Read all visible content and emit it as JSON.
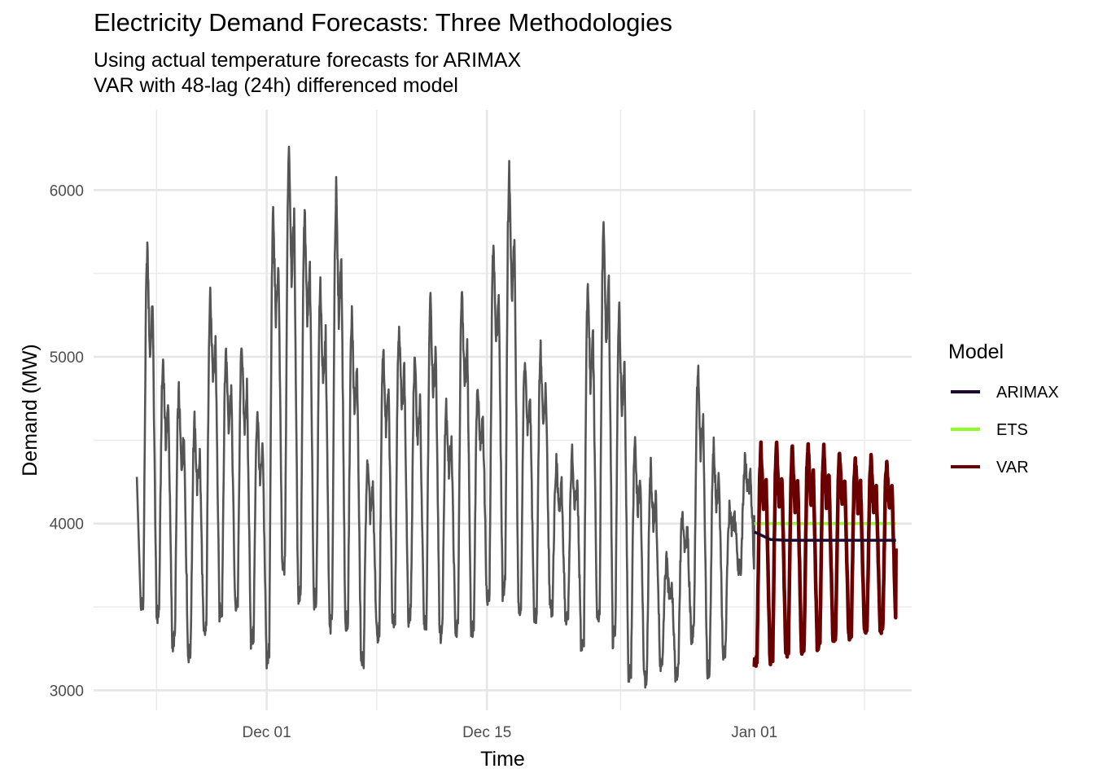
{
  "chart_data": {
    "type": "line",
    "title": "Electricity Demand Forecasts: Three Methodologies",
    "subtitle_lines": [
      "Using actual temperature forecasts for ARIMAX",
      "VAR with 48-lag (24h) differenced model"
    ],
    "xlabel": "Time",
    "ylabel": "Demand (MW)",
    "xlim": [
      "2024-11-20",
      "2025-01-11"
    ],
    "ylim": [
      2880,
      6480
    ],
    "x_ticks": [
      {
        "date": "2024-12-01",
        "label": "Dec 01"
      },
      {
        "date": "2024-12-15",
        "label": "Dec 15"
      },
      {
        "date": "2025-01-01",
        "label": "Jan 01"
      }
    ],
    "y_ticks": [
      3000,
      4000,
      5000,
      6000
    ],
    "grid": true,
    "legend": {
      "title": "Model",
      "position": "right",
      "entries": [
        {
          "name": "ARIMAX",
          "color": "#1f0a2e"
        },
        {
          "name": "ETS",
          "color": "#8fff2a"
        },
        {
          "name": "VAR",
          "color": "#6b0000"
        }
      ]
    },
    "observed": {
      "color": "#555555",
      "daily_peaks": [
        [
          "2024-11-23",
          5670
        ],
        [
          "2024-11-24",
          4990
        ],
        [
          "2024-11-25",
          4800
        ],
        [
          "2024-11-26",
          4620
        ],
        [
          "2024-11-27",
          5410
        ],
        [
          "2024-11-28",
          5060
        ],
        [
          "2024-11-29",
          5090
        ],
        [
          "2024-11-30",
          4690
        ],
        [
          "2024-12-01",
          5890
        ],
        [
          "2024-12-02",
          6300
        ],
        [
          "2024-12-03",
          5900
        ],
        [
          "2024-12-04",
          5450
        ],
        [
          "2024-12-05",
          6020
        ],
        [
          "2024-12-06",
          5270
        ],
        [
          "2024-12-07",
          4370
        ],
        [
          "2024-12-08",
          5060
        ],
        [
          "2024-12-09",
          5220
        ],
        [
          "2024-12-10",
          5000
        ],
        [
          "2024-12-11",
          5370
        ],
        [
          "2024-12-12",
          4730
        ],
        [
          "2024-12-13",
          5410
        ],
        [
          "2024-12-14",
          4860
        ],
        [
          "2024-12-15",
          5720
        ],
        [
          "2024-12-16",
          6130
        ],
        [
          "2024-12-17",
          5010
        ],
        [
          "2024-12-18",
          5060
        ],
        [
          "2024-12-19",
          4370
        ],
        [
          "2024-12-20",
          4420
        ],
        [
          "2024-12-21",
          5460
        ],
        [
          "2024-12-22",
          5840
        ],
        [
          "2024-12-23",
          5290
        ],
        [
          "2024-12-24",
          4500
        ],
        [
          "2024-12-25",
          4340
        ],
        [
          "2024-12-26",
          3780
        ],
        [
          "2024-12-27",
          4070
        ],
        [
          "2024-12-28",
          4950
        ],
        [
          "2024-12-29",
          4490
        ],
        [
          "2024-12-30",
          4080
        ],
        [
          "2024-12-31",
          4390
        ]
      ],
      "daily_troughs": [
        [
          "2024-11-23",
          3460
        ],
        [
          "2024-11-24",
          3410
        ],
        [
          "2024-11-25",
          3250
        ],
        [
          "2024-11-26",
          3180
        ],
        [
          "2024-11-27",
          3280
        ],
        [
          "2024-11-28",
          3430
        ],
        [
          "2024-11-29",
          3470
        ],
        [
          "2024-11-30",
          3270
        ],
        [
          "2024-12-01",
          3120
        ],
        [
          "2024-12-02",
          3650
        ],
        [
          "2024-12-03",
          3510
        ],
        [
          "2024-12-04",
          3490
        ],
        [
          "2024-12-05",
          3320
        ],
        [
          "2024-12-06",
          3350
        ],
        [
          "2024-12-07",
          3140
        ],
        [
          "2024-12-08",
          3290
        ],
        [
          "2024-12-09",
          3380
        ],
        [
          "2024-12-10",
          3400
        ],
        [
          "2024-12-11",
          3340
        ],
        [
          "2024-12-12",
          3300
        ],
        [
          "2024-12-13",
          3300
        ],
        [
          "2024-12-14",
          3330
        ],
        [
          "2024-12-15",
          3480
        ],
        [
          "2024-12-16",
          3540
        ],
        [
          "2024-12-17",
          3460
        ],
        [
          "2024-12-18",
          3400
        ],
        [
          "2024-12-19",
          3470
        ],
        [
          "2024-12-20",
          3390
        ],
        [
          "2024-12-21",
          3210
        ],
        [
          "2024-12-22",
          3350
        ],
        [
          "2024-12-23",
          3260
        ],
        [
          "2024-12-24",
          3050
        ],
        [
          "2024-12-25",
          3030
        ],
        [
          "2024-12-26",
          3140
        ],
        [
          "2024-12-27",
          3060
        ],
        [
          "2024-12-28",
          3300
        ],
        [
          "2024-12-29",
          3090
        ],
        [
          "2024-12-30",
          3200
        ],
        [
          "2024-12-31",
          3710
        ]
      ]
    },
    "series": [
      {
        "name": "ARIMAX",
        "start": "2025-01-01",
        "end": "2025-01-10",
        "values": [
          3950,
          3905,
          3900,
          3900,
          3900,
          3900,
          3900,
          3900,
          3900,
          3900
        ]
      },
      {
        "name": "ETS",
        "start": "2025-01-01",
        "end": "2025-01-10",
        "values": [
          4000,
          4000,
          4000,
          4000,
          4000,
          4000,
          4000,
          4000,
          4000,
          4000
        ]
      },
      {
        "name": "VAR",
        "daily_peaks": [
          [
            "2025-01-01",
            4460
          ],
          [
            "2025-01-02",
            4480
          ],
          [
            "2025-01-03",
            4470
          ],
          [
            "2025-01-04",
            4490
          ],
          [
            "2025-01-05",
            4460
          ],
          [
            "2025-01-06",
            4440
          ],
          [
            "2025-01-07",
            4400
          ],
          [
            "2025-01-08",
            4390
          ],
          [
            "2025-01-09",
            4380
          ]
        ],
        "daily_troughs": [
          [
            "2025-01-01",
            3130
          ],
          [
            "2025-01-02",
            3150
          ],
          [
            "2025-01-03",
            3190
          ],
          [
            "2025-01-04",
            3210
          ],
          [
            "2025-01-05",
            3240
          ],
          [
            "2025-01-06",
            3280
          ],
          [
            "2025-01-07",
            3300
          ],
          [
            "2025-01-08",
            3330
          ],
          [
            "2025-01-09",
            3340
          ]
        ]
      }
    ]
  }
}
